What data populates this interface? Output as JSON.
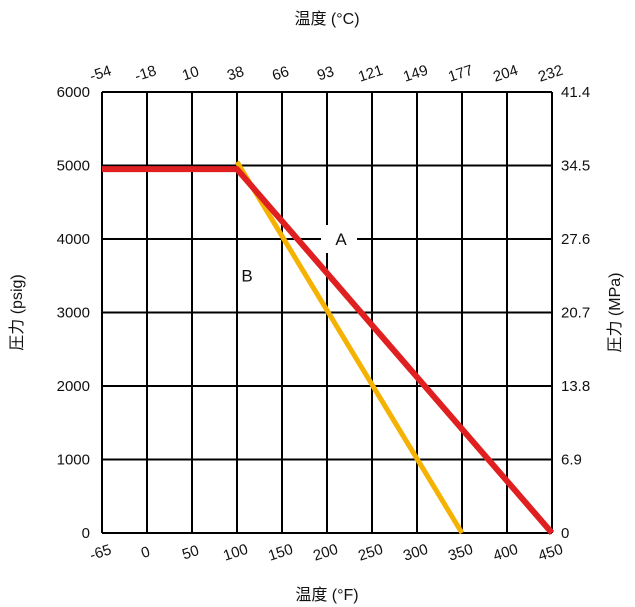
{
  "chart_data": {
    "type": "line",
    "x_axis_bottom": {
      "label": "温度 (°F)",
      "ticks": [
        -65,
        0,
        50,
        100,
        150,
        200,
        250,
        300,
        350,
        400,
        450
      ],
      "tick_labels": [
        "-65",
        "0",
        "50",
        "100",
        "150",
        "200",
        "250",
        "300",
        "350",
        "400",
        "450"
      ]
    },
    "x_axis_top": {
      "label": "温度 (°C)",
      "tick_labels": [
        "-54",
        "-18",
        "10",
        "38",
        "66",
        "93",
        "121",
        "149",
        "177",
        "204",
        "232"
      ]
    },
    "y_axis_left": {
      "label": "圧力 (psig)",
      "ylim": [
        0,
        6000
      ],
      "ticks": [
        0,
        1000,
        2000,
        3000,
        4000,
        5000,
        6000
      ],
      "tick_labels": [
        "0",
        "1000",
        "2000",
        "3000",
        "4000",
        "5000",
        "6000"
      ]
    },
    "y_axis_right": {
      "label": "圧力 (MPa)",
      "tick_labels": [
        "0",
        "6.9",
        "13.8",
        "20.7",
        "27.6",
        "34.5",
        "41.4"
      ]
    },
    "grid": true,
    "series": [
      {
        "name": "A",
        "color": "#e02020",
        "points": [
          [
            -65,
            4950
          ],
          [
            100,
            4950
          ],
          [
            450,
            0
          ]
        ]
      },
      {
        "name": "B",
        "color": "#f5b200",
        "points": [
          [
            100,
            5050
          ],
          [
            350,
            0
          ]
        ]
      }
    ],
    "annotations": [
      {
        "text": "A",
        "x": 200,
        "y": 4000
      },
      {
        "text": "B",
        "x": 100,
        "y": 3800
      }
    ]
  }
}
